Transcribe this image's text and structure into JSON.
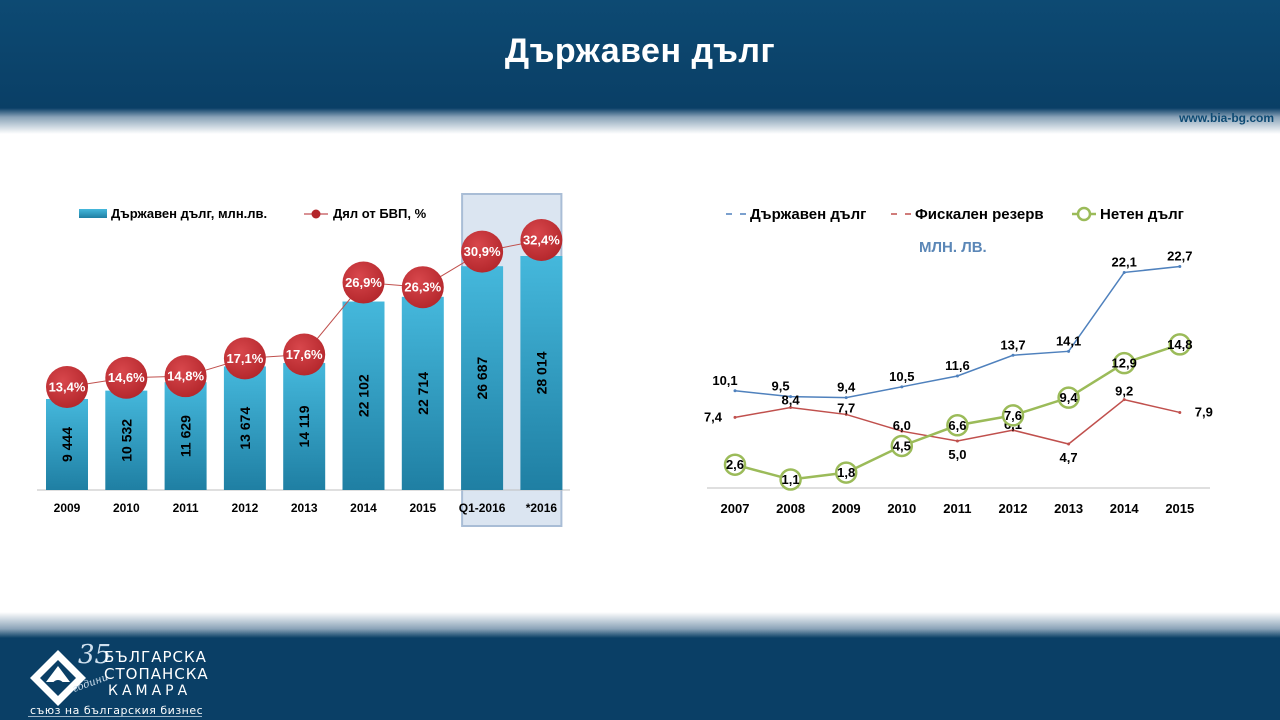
{
  "page": {
    "title": "Държавен дълг",
    "site": "www.bia-bg.com",
    "logo": {
      "line1": "БЪЛГАРСКА",
      "line2": "СТОПАНСКА",
      "line3": "КАМАРА",
      "tagline": "съюз на българския бизнес",
      "anniversary": "35",
      "anniversary_sub": "години"
    }
  },
  "colors": {
    "header": "#0a3f66",
    "bar": "#2aa1c6",
    "bubble": "#b3262b",
    "highlight_bg": "#dbe5f1",
    "highlight_border": "#a9bdd6",
    "line_debt": "#4f81bd",
    "line_reserve": "#c0504d",
    "line_net": "#9bbb59"
  },
  "chart_data": [
    {
      "type": "bar",
      "title": "",
      "categories": [
        "2009",
        "2010",
        "2011",
        "2012",
        "2013",
        "2014",
        "2015",
        "Q1-2016",
        "*2016"
      ],
      "series": [
        {
          "name": "Държавен дълг, млн.лв.",
          "type": "bar",
          "values": [
            9444,
            10532,
            11629,
            13674,
            14119,
            22102,
            22714,
            26687,
            28014
          ],
          "labels": [
            "9 444",
            "10 532",
            "11 629",
            "13 674",
            "14 119",
            "22 102",
            "22 714",
            "26 687",
            "28 014"
          ]
        },
        {
          "name": "Дял от БВП, %",
          "type": "line",
          "values": [
            13.4,
            14.6,
            14.8,
            17.1,
            17.6,
            26.9,
            26.3,
            30.9,
            32.4
          ],
          "labels": [
            "13,4%",
            "14,6%",
            "14,8%",
            "17,1%",
            "17,6%",
            "26,9%",
            "26,3%",
            "30,9%",
            "32,4%"
          ]
        }
      ],
      "highlighted_categories": [
        "Q1-2016",
        "*2016"
      ],
      "legend": "top",
      "grid": false
    },
    {
      "type": "line",
      "title": "МЛН. ЛВ.",
      "categories": [
        "2007",
        "2008",
        "2009",
        "2010",
        "2011",
        "2012",
        "2013",
        "2014",
        "2015"
      ],
      "series": [
        {
          "name": "Държавен дълг",
          "values": [
            10.1,
            9.5,
            9.4,
            10.5,
            11.6,
            13.7,
            14.1,
            22.1,
            22.7
          ],
          "labels": [
            "10,1",
            "9,5",
            "9,4",
            "10,5",
            "11,6",
            "13,7",
            "14,1",
            "22,1",
            "22,7"
          ]
        },
        {
          "name": "Фискален резерв",
          "values": [
            7.4,
            8.4,
            7.7,
            6.0,
            5.0,
            6.1,
            4.7,
            9.2,
            7.9
          ],
          "labels": [
            "7,4",
            "8,4",
            "7,7",
            "6,0",
            "5,0",
            "6,1",
            "4,7",
            "9,2",
            "7,9"
          ]
        },
        {
          "name": "Нетен дълг",
          "values": [
            2.6,
            1.1,
            1.8,
            4.5,
            6.6,
            7.6,
            9.4,
            12.9,
            14.8
          ],
          "labels": [
            "2,6",
            "1,1",
            "1,8",
            "4,5",
            "6,6",
            "7,6",
            "9,4",
            "12,9",
            "14,8"
          ]
        }
      ],
      "legend": "top",
      "grid": false
    }
  ]
}
